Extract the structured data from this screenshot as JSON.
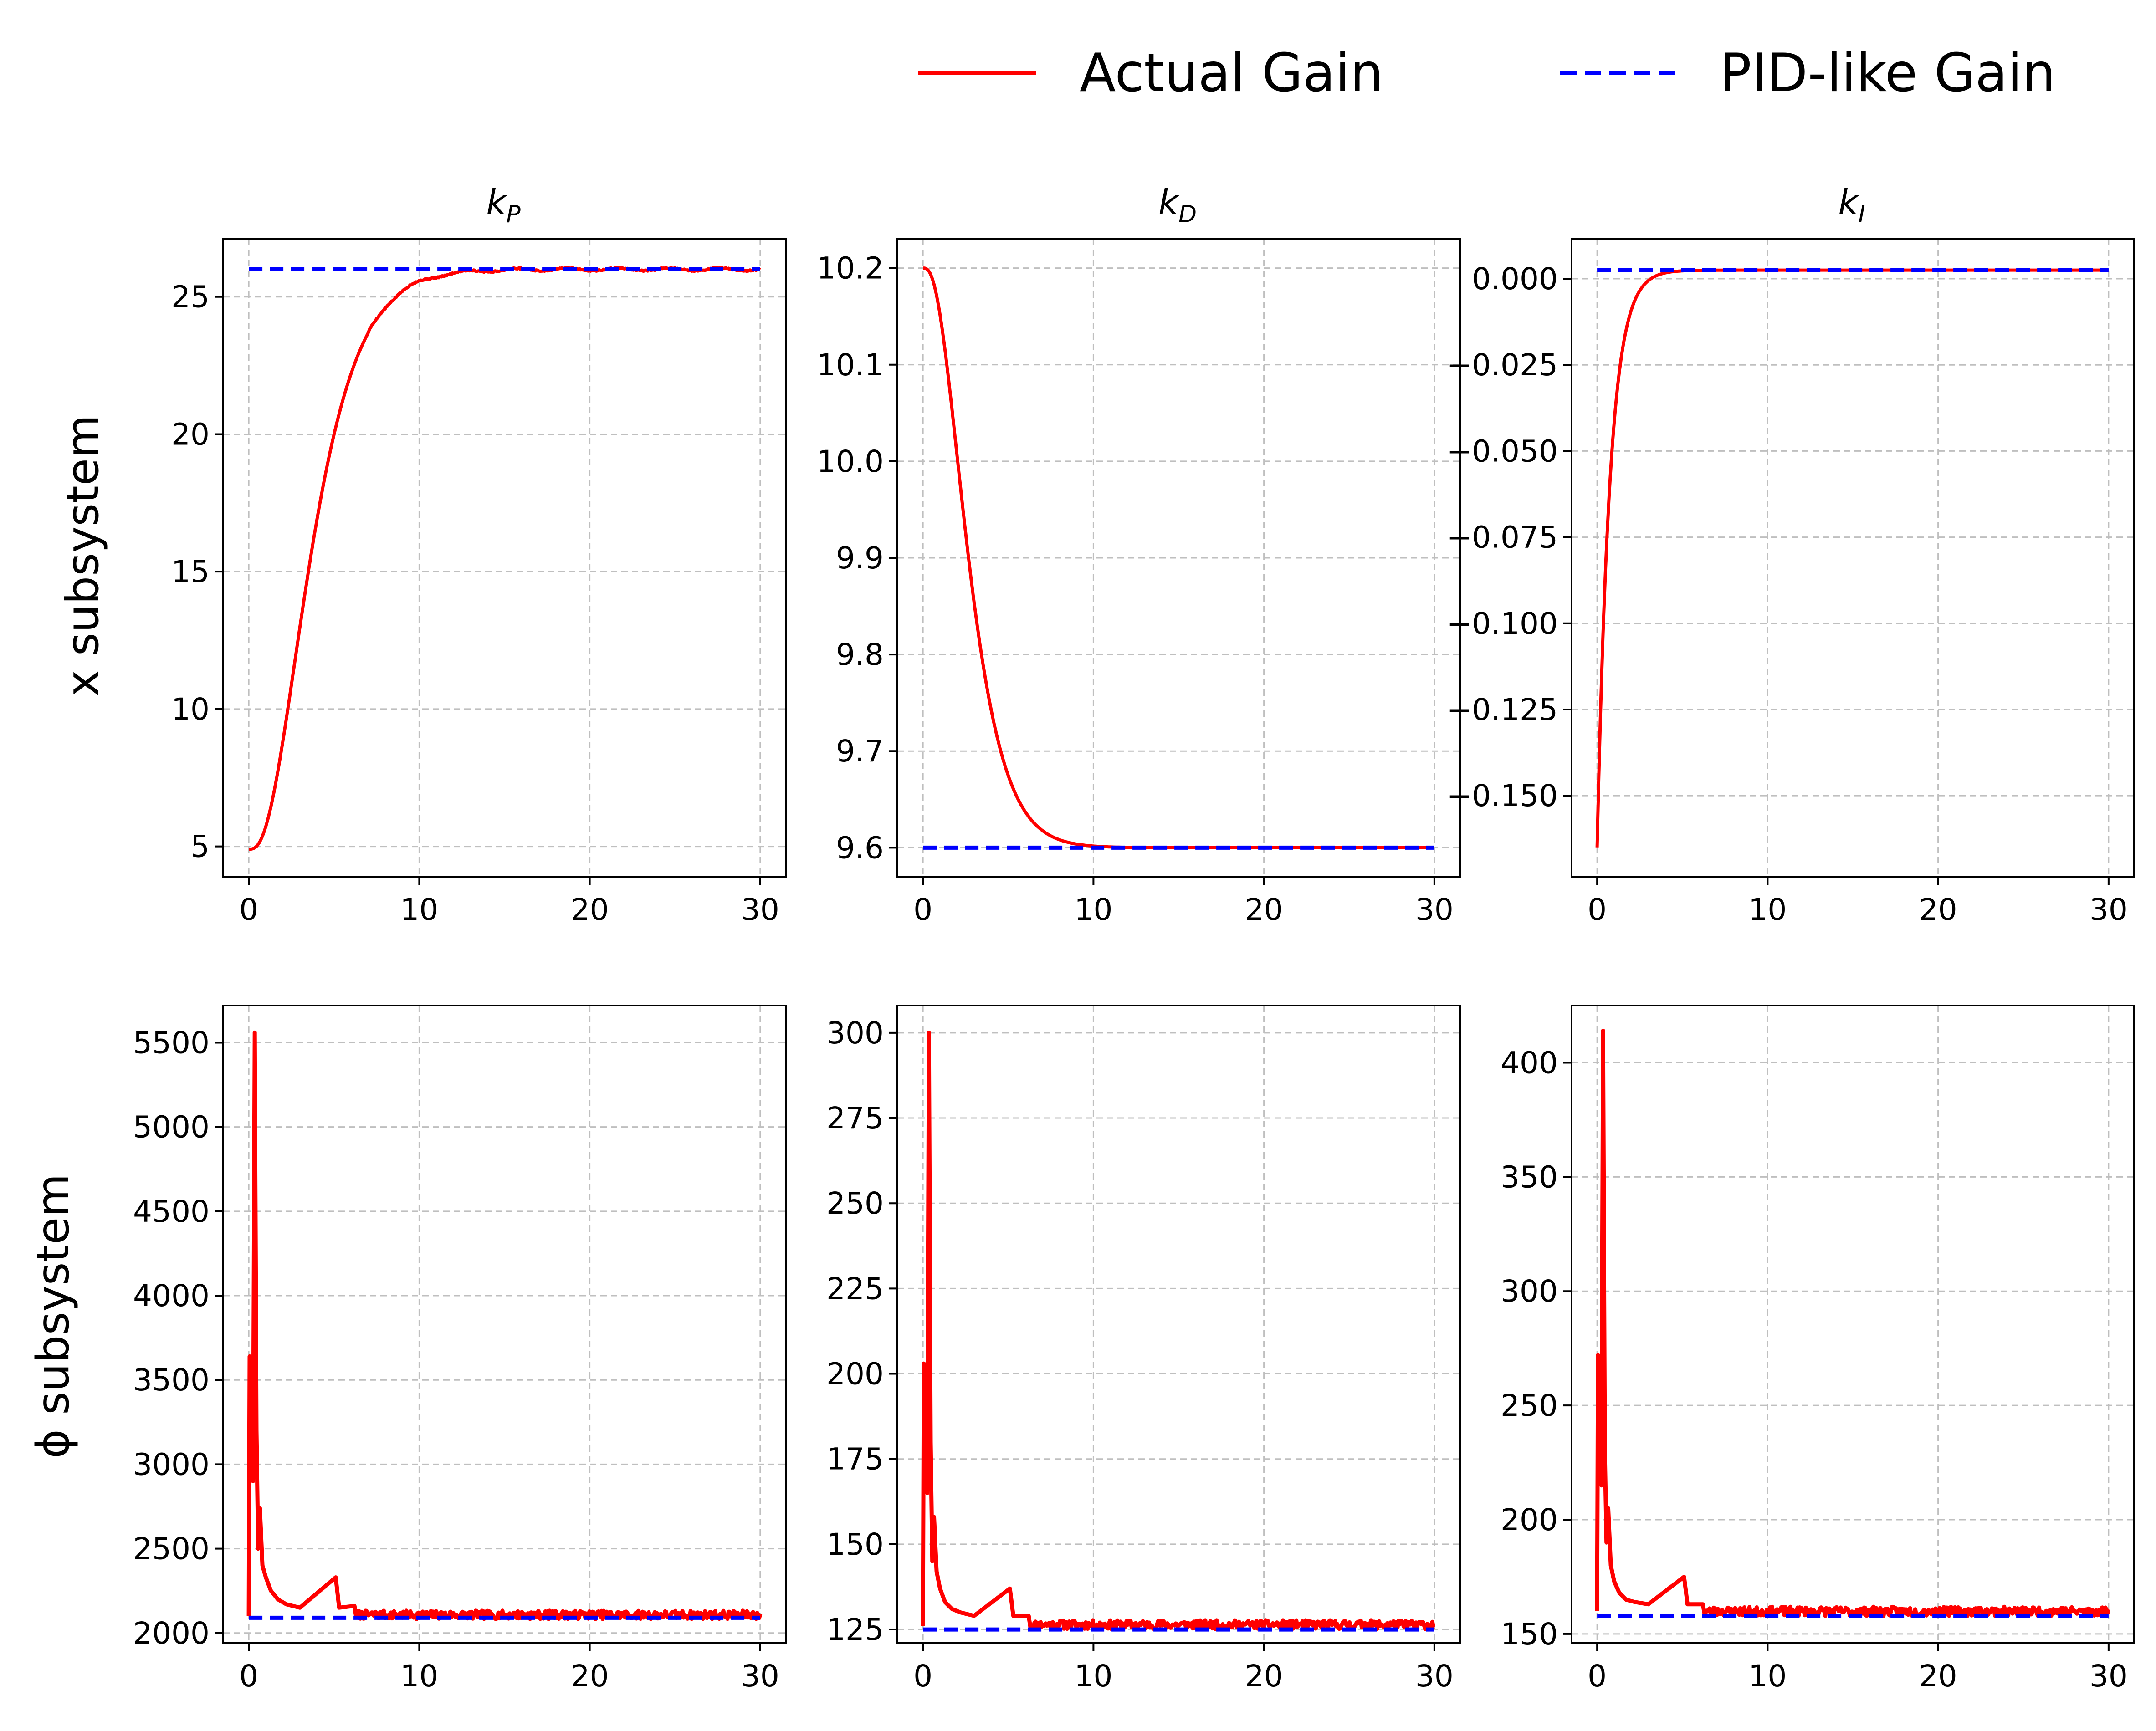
{
  "legend": {
    "placement": "top-right",
    "entries": [
      {
        "label": "Actual Gain",
        "color": "#ff0000",
        "style": "solid"
      },
      {
        "label": "PID-like Gain",
        "color": "#0000ff",
        "style": "dashed"
      }
    ]
  },
  "row_labels": [
    "x subsystem",
    "ϕ subsystem"
  ],
  "col_titles": [
    {
      "main": "k",
      "sub": "P"
    },
    {
      "main": "k",
      "sub": "D"
    },
    {
      "main": "k",
      "sub": "I"
    }
  ],
  "colors": {
    "actual": "#ff0000",
    "pid": "#0000ff",
    "grid": "#bfbfbf"
  },
  "chart_data": [
    {
      "type": "line",
      "row": 0,
      "col": 0,
      "xlim": [
        -1.5,
        31.5
      ],
      "ylim": [
        3.9,
        27.1
      ],
      "xticks": [
        0,
        10,
        20,
        30
      ],
      "yticks": [
        5,
        10,
        15,
        20,
        25
      ],
      "ytick_labels": [
        "5",
        "10",
        "15",
        "20",
        "25"
      ],
      "grid": true,
      "series": [
        {
          "name": "Actual Gain",
          "kind": "rise",
          "start": 4.9,
          "final": 26.0,
          "tau": 1.35,
          "order": 3,
          "ripple": 0.05
        },
        {
          "name": "PID-like Gain",
          "kind": "const",
          "value": 26.0
        }
      ]
    },
    {
      "type": "line",
      "row": 0,
      "col": 1,
      "xlim": [
        -1.5,
        31.5
      ],
      "ylim": [
        9.57,
        10.23
      ],
      "xticks": [
        0,
        10,
        20,
        30
      ],
      "yticks": [
        9.6,
        9.7,
        9.8,
        9.9,
        10.0,
        10.1,
        10.2
      ],
      "ytick_labels": [
        "9.6",
        "9.7",
        "9.8",
        "9.9",
        "10.0",
        "10.1",
        "10.2"
      ],
      "grid": true,
      "series": [
        {
          "name": "Actual Gain",
          "kind": "rise",
          "start": 10.2,
          "final": 9.6,
          "tau": 1.0,
          "order": 3,
          "ripple": 0.0
        },
        {
          "name": "PID-like Gain",
          "kind": "const",
          "value": 9.6
        }
      ]
    },
    {
      "type": "line",
      "row": 0,
      "col": 2,
      "xlim": [
        -1.5,
        31.5
      ],
      "ylim": [
        -0.1735,
        0.0115
      ],
      "xticks": [
        0,
        10,
        20,
        30
      ],
      "yticks": [
        -0.15,
        -0.125,
        -0.1,
        -0.075,
        -0.05,
        -0.025,
        0.0
      ],
      "ytick_labels": [
        "−0.150",
        "−0.125",
        "−0.100",
        "−0.075",
        "−0.050",
        "−0.025",
        "0.000"
      ],
      "grid": true,
      "series": [
        {
          "name": "Actual Gain",
          "kind": "decay",
          "start": -0.165,
          "final": 0.0025,
          "tau": 0.75,
          "ripple": 0.0
        },
        {
          "name": "PID-like Gain",
          "kind": "const",
          "value": 0.0025
        }
      ]
    },
    {
      "type": "line",
      "row": 1,
      "col": 0,
      "xlim": [
        -1.5,
        31.5
      ],
      "ylim": [
        1940,
        5720
      ],
      "xticks": [
        0,
        10,
        20,
        30
      ],
      "yticks": [
        2000,
        2500,
        3000,
        3500,
        4000,
        4500,
        5000,
        5500
      ],
      "ytick_labels": [
        "2000",
        "2500",
        "3000",
        "3500",
        "4000",
        "4500",
        "5000",
        "5500"
      ],
      "grid": true,
      "series": [
        {
          "name": "Actual Gain",
          "kind": "spiky",
          "base": 2090,
          "noise": 25,
          "seed": 7,
          "spikes": [
            [
              0.0,
              2100
            ],
            [
              0.05,
              3640
            ],
            [
              0.15,
              3100
            ],
            [
              0.25,
              2900
            ],
            [
              0.35,
              5560
            ],
            [
              0.45,
              3200
            ],
            [
              0.55,
              2500
            ],
            [
              0.65,
              2740
            ],
            [
              0.8,
              2400
            ],
            [
              1.0,
              2330
            ],
            [
              1.3,
              2250
            ],
            [
              1.7,
              2200
            ],
            [
              2.2,
              2170
            ],
            [
              3.0,
              2150
            ],
            [
              5.1,
              2330
            ],
            [
              5.3,
              2150
            ],
            [
              6.2,
              2160
            ]
          ]
        },
        {
          "name": "PID-like Gain",
          "kind": "const",
          "value": 2090
        }
      ]
    },
    {
      "type": "line",
      "row": 1,
      "col": 1,
      "xlim": [
        -1.5,
        31.5
      ],
      "ylim": [
        121,
        308
      ],
      "xticks": [
        0,
        10,
        20,
        30
      ],
      "yticks": [
        125,
        150,
        175,
        200,
        225,
        250,
        275,
        300
      ],
      "ytick_labels": [
        "125",
        "150",
        "175",
        "200",
        "225",
        "250",
        "275",
        "300"
      ],
      "grid": true,
      "series": [
        {
          "name": "Actual Gain",
          "kind": "spiky",
          "base": 125.5,
          "noise": 1.3,
          "seed": 11,
          "spikes": [
            [
              0.0,
              126
            ],
            [
              0.05,
              203
            ],
            [
              0.15,
              180
            ],
            [
              0.25,
              165
            ],
            [
              0.35,
              300
            ],
            [
              0.45,
              180
            ],
            [
              0.55,
              145
            ],
            [
              0.65,
              158
            ],
            [
              0.8,
              142
            ],
            [
              1.0,
              137
            ],
            [
              1.3,
              133
            ],
            [
              1.7,
              131
            ],
            [
              2.2,
              130
            ],
            [
              3.0,
              129
            ],
            [
              5.1,
              137
            ],
            [
              5.3,
              129
            ],
            [
              6.2,
              129
            ]
          ]
        },
        {
          "name": "PID-like Gain",
          "kind": "const",
          "value": 125
        }
      ]
    },
    {
      "type": "line",
      "row": 1,
      "col": 2,
      "xlim": [
        -1.5,
        31.5
      ],
      "ylim": [
        146,
        425
      ],
      "xticks": [
        0,
        10,
        20,
        30
      ],
      "yticks": [
        150,
        200,
        250,
        300,
        350,
        400
      ],
      "ytick_labels": [
        "150",
        "200",
        "250",
        "300",
        "350",
        "400"
      ],
      "grid": true,
      "series": [
        {
          "name": "Actual Gain",
          "kind": "spiky",
          "base": 158.5,
          "noise": 2.0,
          "seed": 23,
          "spikes": [
            [
              0.0,
              160
            ],
            [
              0.05,
              272
            ],
            [
              0.15,
              235
            ],
            [
              0.25,
              215
            ],
            [
              0.35,
              414
            ],
            [
              0.45,
              230
            ],
            [
              0.55,
              190
            ],
            [
              0.65,
              205
            ],
            [
              0.8,
              180
            ],
            [
              1.0,
              173
            ],
            [
              1.3,
              168
            ],
            [
              1.7,
              165
            ],
            [
              2.2,
              164
            ],
            [
              3.0,
              163
            ],
            [
              5.1,
              175
            ],
            [
              5.3,
              163
            ],
            [
              6.2,
              163
            ]
          ]
        },
        {
          "name": "PID-like Gain",
          "kind": "const",
          "value": 158
        }
      ]
    }
  ]
}
